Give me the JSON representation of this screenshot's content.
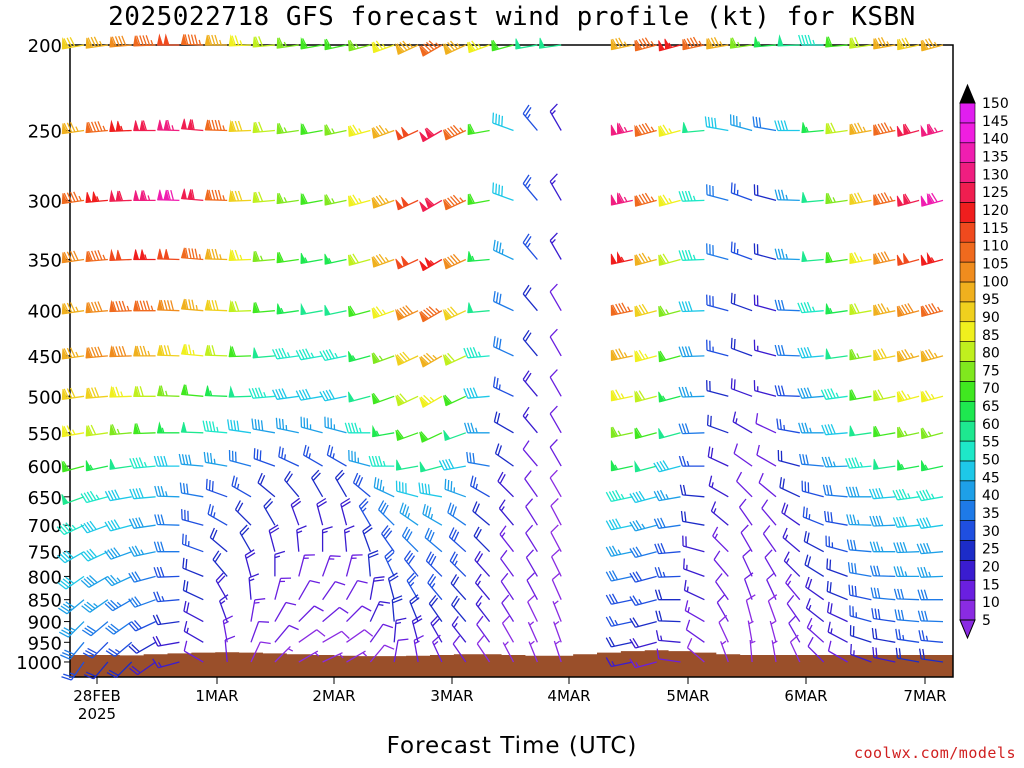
{
  "chart_data": {
    "type": "wind-barb-profile",
    "title": "2025022718 GFS forecast wind profile (kt) for KSBN",
    "xlabel": "Forecast Time (UTC)",
    "ylabel": "",
    "y_levels_hPa": [
      200,
      250,
      300,
      350,
      400,
      450,
      500,
      550,
      600,
      650,
      700,
      750,
      800,
      850,
      900,
      950,
      1000
    ],
    "y_scale": "log-pressure, inverted",
    "x_start_label": "28FEB",
    "x_start_year": "2025",
    "x_tick_labels": [
      "28FEB",
      "1MAR",
      "2MAR",
      "3MAR",
      "4MAR",
      "5MAR",
      "6MAR",
      "7MAR"
    ],
    "colorbar_ticks": [
      5,
      10,
      15,
      20,
      25,
      30,
      35,
      40,
      45,
      50,
      55,
      60,
      65,
      70,
      75,
      80,
      85,
      90,
      95,
      100,
      105,
      110,
      115,
      120,
      125,
      130,
      135,
      140,
      145,
      150
    ],
    "colorbar_colors": [
      "#8a2be2",
      "#6a1fe0",
      "#3a1cd0",
      "#1c2cc8",
      "#1f4fe0",
      "#1e7ae8",
      "#1ea0e8",
      "#1ec8e8",
      "#1ee8c8",
      "#1ee890",
      "#1ee850",
      "#40e820",
      "#80e81e",
      "#c0f01e",
      "#f0f01e",
      "#f0d01e",
      "#f0b01e",
      "#f08c1e",
      "#f06a1e",
      "#f04a1e",
      "#f01e1e",
      "#f01e50",
      "#f01e80",
      "#f01eb0",
      "#f01ee0",
      "#e01ef0"
    ],
    "colorbar_extend": "both",
    "time_steps": 37,
    "wind_speed_kt": [
      [
        80,
        85,
        90,
        95,
        100,
        95,
        85,
        75,
        70,
        65,
        60,
        60,
        65,
        75,
        85,
        95,
        85,
        75,
        60,
        50,
        50,
        55,
        75,
        85,
        95,
        105,
        95,
        85,
        65,
        55,
        50,
        45,
        60,
        70,
        85,
        80,
        85
      ],
      [
        85,
        95,
        105,
        110,
        115,
        110,
        95,
        80,
        70,
        65,
        60,
        65,
        75,
        85,
        100,
        110,
        95,
        60,
        40,
        25,
        15,
        70,
        105,
        115,
        95,
        75,
        50,
        40,
        35,
        30,
        40,
        55,
        70,
        85,
        95,
        110,
        115
      ],
      [
        95,
        105,
        110,
        115,
        120,
        110,
        95,
        80,
        70,
        65,
        60,
        65,
        75,
        85,
        100,
        110,
        95,
        60,
        40,
        25,
        15,
        60,
        105,
        115,
        95,
        75,
        45,
        30,
        25,
        20,
        35,
        50,
        65,
        80,
        95,
        110,
        120
      ],
      [
        90,
        95,
        100,
        105,
        100,
        95,
        85,
        75,
        65,
        60,
        55,
        55,
        70,
        85,
        100,
        105,
        90,
        55,
        35,
        25,
        15,
        55,
        95,
        105,
        85,
        70,
        45,
        30,
        25,
        20,
        35,
        50,
        60,
        75,
        90,
        100,
        105
      ],
      [
        85,
        90,
        95,
        95,
        90,
        85,
        80,
        70,
        60,
        55,
        50,
        50,
        60,
        75,
        90,
        95,
        80,
        50,
        30,
        20,
        10,
        50,
        90,
        95,
        80,
        65,
        40,
        28,
        22,
        18,
        30,
        45,
        55,
        70,
        85,
        90,
        95
      ],
      [
        85,
        90,
        90,
        85,
        80,
        75,
        70,
        60,
        50,
        45,
        45,
        45,
        55,
        65,
        80,
        85,
        70,
        45,
        30,
        20,
        10,
        45,
        80,
        85,
        75,
        60,
        38,
        25,
        20,
        15,
        30,
        40,
        50,
        65,
        80,
        85,
        85
      ],
      [
        80,
        80,
        75,
        70,
        65,
        60,
        55,
        50,
        45,
        40,
        40,
        40,
        50,
        60,
        70,
        75,
        60,
        40,
        25,
        18,
        10,
        40,
        70,
        75,
        70,
        55,
        35,
        22,
        18,
        15,
        28,
        38,
        45,
        60,
        70,
        75,
        75
      ],
      [
        75,
        70,
        65,
        60,
        55,
        50,
        45,
        40,
        38,
        35,
        35,
        35,
        45,
        55,
        60,
        60,
        50,
        35,
        22,
        15,
        10,
        35,
        60,
        65,
        60,
        50,
        30,
        20,
        15,
        12,
        25,
        35,
        40,
        50,
        60,
        65,
        65
      ],
      [
        60,
        55,
        50,
        45,
        40,
        38,
        35,
        30,
        28,
        25,
        25,
        25,
        35,
        45,
        50,
        50,
        40,
        30,
        20,
        12,
        10,
        30,
        50,
        55,
        50,
        40,
        25,
        18,
        12,
        10,
        22,
        30,
        35,
        45,
        50,
        55,
        55
      ],
      [
        50,
        45,
        42,
        40,
        35,
        30,
        28,
        25,
        22,
        20,
        20,
        20,
        28,
        35,
        40,
        40,
        35,
        25,
        18,
        10,
        8,
        28,
        40,
        45,
        40,
        35,
        22,
        15,
        12,
        10,
        20,
        28,
        30,
        38,
        42,
        45,
        45
      ],
      [
        45,
        42,
        40,
        38,
        32,
        28,
        25,
        22,
        20,
        18,
        18,
        18,
        25,
        30,
        35,
        35,
        30,
        22,
        15,
        10,
        8,
        25,
        35,
        40,
        35,
        30,
        20,
        15,
        10,
        10,
        18,
        25,
        28,
        35,
        38,
        40,
        40
      ],
      [
        42,
        40,
        38,
        35,
        30,
        25,
        22,
        20,
        18,
        16,
        16,
        16,
        22,
        28,
        30,
        30,
        28,
        20,
        14,
        10,
        8,
        22,
        30,
        35,
        30,
        28,
        18,
        14,
        10,
        10,
        16,
        22,
        25,
        32,
        35,
        38,
        38
      ],
      [
        40,
        38,
        35,
        32,
        28,
        22,
        20,
        18,
        16,
        14,
        14,
        14,
        20,
        25,
        28,
        28,
        25,
        18,
        12,
        10,
        8,
        20,
        28,
        30,
        28,
        25,
        16,
        12,
        10,
        10,
        15,
        20,
        22,
        30,
        32,
        35,
        35
      ],
      [
        38,
        36,
        33,
        30,
        25,
        20,
        18,
        15,
        14,
        12,
        12,
        12,
        18,
        22,
        25,
        25,
        22,
        16,
        12,
        10,
        8,
        18,
        25,
        28,
        25,
        22,
        15,
        12,
        10,
        10,
        14,
        18,
        20,
        28,
        30,
        32,
        32
      ],
      [
        35,
        32,
        30,
        28,
        22,
        18,
        16,
        14,
        12,
        10,
        10,
        10,
        15,
        20,
        22,
        22,
        20,
        15,
        10,
        8,
        6,
        15,
        22,
        25,
        22,
        20,
        14,
        10,
        8,
        8,
        12,
        16,
        18,
        25,
        28,
        30,
        30
      ],
      [
        30,
        28,
        25,
        22,
        18,
        15,
        14,
        12,
        10,
        8,
        8,
        8,
        12,
        16,
        18,
        18,
        16,
        12,
        8,
        6,
        6,
        12,
        18,
        20,
        18,
        16,
        12,
        8,
        6,
        6,
        10,
        14,
        15,
        20,
        22,
        25,
        25
      ],
      [
        25,
        22,
        20,
        18,
        15,
        12,
        10,
        8,
        6,
        5,
        5,
        5,
        8,
        12,
        14,
        14,
        12,
        8,
        6,
        5,
        5,
        8,
        14,
        16,
        14,
        12,
        8,
        6,
        5,
        5,
        8,
        10,
        12,
        16,
        18,
        20,
        20
      ]
    ],
    "wind_dir_deg": [
      [
        260,
        262,
        265,
        268,
        270,
        272,
        270,
        268,
        265,
        262,
        260,
        258,
        255,
        250,
        245,
        240,
        245,
        250,
        255,
        260,
        262,
        265,
        262,
        258,
        255,
        255,
        258,
        260,
        262,
        265,
        268,
        270,
        265,
        262,
        260,
        258,
        255
      ],
      [
        262,
        265,
        268,
        270,
        272,
        275,
        272,
        268,
        265,
        262,
        260,
        258,
        255,
        250,
        245,
        240,
        245,
        260,
        290,
        320,
        330,
        280,
        262,
        258,
        255,
        255,
        265,
        280,
        285,
        280,
        270,
        265,
        262,
        260,
        258,
        255,
        255
      ],
      [
        262,
        265,
        268,
        270,
        272,
        275,
        272,
        268,
        265,
        262,
        260,
        258,
        255,
        250,
        245,
        240,
        245,
        260,
        290,
        320,
        330,
        280,
        262,
        258,
        255,
        255,
        268,
        285,
        290,
        285,
        272,
        265,
        262,
        260,
        258,
        255,
        255
      ],
      [
        262,
        265,
        268,
        270,
        272,
        275,
        272,
        268,
        265,
        262,
        260,
        258,
        255,
        250,
        245,
        240,
        245,
        265,
        295,
        320,
        330,
        285,
        262,
        258,
        255,
        255,
        268,
        285,
        290,
        285,
        272,
        265,
        262,
        260,
        258,
        255,
        255
      ],
      [
        262,
        265,
        268,
        270,
        272,
        275,
        272,
        268,
        265,
        262,
        260,
        258,
        255,
        250,
        245,
        240,
        245,
        265,
        295,
        320,
        330,
        285,
        262,
        258,
        255,
        255,
        268,
        285,
        290,
        285,
        272,
        265,
        262,
        260,
        258,
        255,
        255
      ],
      [
        262,
        265,
        268,
        270,
        272,
        275,
        272,
        268,
        265,
        262,
        260,
        258,
        255,
        250,
        245,
        240,
        245,
        265,
        295,
        320,
        330,
        285,
        262,
        258,
        255,
        255,
        268,
        285,
        290,
        285,
        272,
        265,
        262,
        260,
        258,
        255,
        255
      ],
      [
        262,
        265,
        268,
        270,
        272,
        275,
        272,
        268,
        265,
        262,
        260,
        258,
        255,
        250,
        245,
        240,
        245,
        265,
        295,
        320,
        330,
        285,
        262,
        258,
        255,
        255,
        268,
        285,
        290,
        285,
        272,
        265,
        262,
        260,
        258,
        255,
        255
      ],
      [
        260,
        262,
        265,
        268,
        270,
        272,
        275,
        278,
        280,
        282,
        285,
        285,
        270,
        260,
        250,
        245,
        250,
        270,
        300,
        320,
        330,
        290,
        262,
        258,
        255,
        255,
        268,
        290,
        300,
        295,
        280,
        270,
        265,
        262,
        260,
        258,
        255
      ],
      [
        255,
        258,
        262,
        265,
        270,
        275,
        280,
        285,
        290,
        295,
        300,
        300,
        285,
        270,
        260,
        255,
        260,
        280,
        305,
        320,
        330,
        295,
        262,
        258,
        255,
        255,
        270,
        295,
        305,
        300,
        285,
        275,
        268,
        265,
        262,
        260,
        258
      ],
      [
        250,
        255,
        260,
        265,
        272,
        280,
        290,
        300,
        310,
        320,
        330,
        330,
        310,
        295,
        285,
        280,
        290,
        300,
        315,
        325,
        330,
        300,
        262,
        258,
        255,
        260,
        275,
        300,
        315,
        310,
        295,
        285,
        275,
        270,
        265,
        262,
        260
      ],
      [
        245,
        250,
        255,
        262,
        272,
        285,
        300,
        315,
        330,
        340,
        345,
        345,
        330,
        315,
        305,
        300,
        305,
        310,
        320,
        328,
        332,
        305,
        262,
        258,
        255,
        262,
        280,
        310,
        325,
        320,
        305,
        292,
        280,
        272,
        268,
        265,
        262
      ],
      [
        240,
        245,
        250,
        258,
        270,
        290,
        310,
        330,
        345,
        355,
        360,
        355,
        340,
        325,
        315,
        310,
        312,
        315,
        322,
        328,
        332,
        310,
        262,
        258,
        255,
        265,
        285,
        315,
        330,
        325,
        310,
        298,
        285,
        275,
        270,
        268,
        265
      ],
      [
        235,
        240,
        245,
        255,
        268,
        292,
        320,
        345,
        360,
        15,
        20,
        15,
        355,
        335,
        322,
        315,
        315,
        318,
        324,
        330,
        334,
        315,
        262,
        258,
        255,
        268,
        290,
        320,
        335,
        330,
        315,
        302,
        290,
        280,
        272,
        270,
        268
      ],
      [
        230,
        235,
        240,
        250,
        265,
        295,
        330,
        355,
        15,
        30,
        35,
        30,
        10,
        345,
        330,
        320,
        318,
        320,
        326,
        332,
        336,
        320,
        262,
        258,
        255,
        270,
        295,
        325,
        340,
        335,
        320,
        305,
        292,
        282,
        275,
        272,
        270
      ],
      [
        225,
        230,
        235,
        245,
        262,
        298,
        340,
        10,
        30,
        45,
        50,
        45,
        25,
        355,
        338,
        325,
        320,
        322,
        328,
        334,
        338,
        325,
        262,
        258,
        255,
        272,
        300,
        330,
        345,
        340,
        325,
        308,
        295,
        285,
        278,
        275,
        272
      ],
      [
        220,
        225,
        230,
        240,
        260,
        300,
        350,
        20,
        40,
        55,
        60,
        55,
        35,
        5,
        345,
        330,
        322,
        324,
        330,
        336,
        340,
        330,
        262,
        258,
        255,
        275,
        305,
        335,
        350,
        345,
        330,
        312,
        298,
        288,
        280,
        278,
        275
      ],
      [
        215,
        220,
        225,
        235,
        255,
        300,
        355,
        25,
        45,
        60,
        65,
        60,
        40,
        10,
        350,
        335,
        325,
        326,
        332,
        338,
        342,
        335,
        262,
        258,
        255,
        278,
        310,
        340,
        355,
        350,
        335,
        315,
        300,
        290,
        282,
        280,
        278
      ]
    ],
    "missing_columns": [
      21,
      22
    ],
    "terrain": "brown surface fill near 980-1000 hPa"
  },
  "credit": "coolwx.com/models"
}
